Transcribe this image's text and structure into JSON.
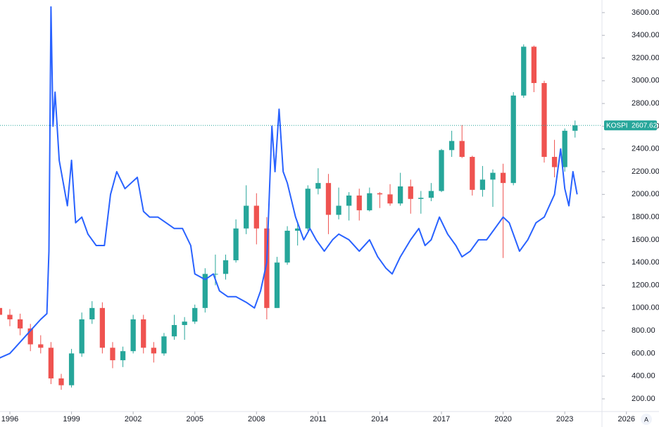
{
  "chart_data": {
    "type": "candlestick",
    "xlim": [
      1995.52,
      2024.81
    ],
    "xticks": [
      1996,
      1999,
      2002,
      2005,
      2008,
      2011,
      2014,
      2017,
      2020,
      2023,
      2026
    ],
    "ylim": [
      88.6,
      3711
    ],
    "yticks": [
      {
        "value": 200,
        "label": "200.00"
      },
      {
        "value": 400,
        "label": "400.00"
      },
      {
        "value": 600,
        "label": "600.00"
      },
      {
        "value": 800,
        "label": "800.00"
      },
      {
        "value": 1000,
        "label": "1000.00"
      },
      {
        "value": 1200,
        "label": "1200.00"
      },
      {
        "value": 1400,
        "label": "1400.00"
      },
      {
        "value": 1600,
        "label": "1600.00"
      },
      {
        "value": 1800,
        "label": "1800.00"
      },
      {
        "value": 2000,
        "label": "2000.00"
      },
      {
        "value": 2200,
        "label": "2200.00"
      },
      {
        "value": 2400,
        "label": "2400.00"
      },
      {
        "value": 2600,
        "label": "2600.00"
      },
      {
        "value": 2800,
        "label": "2800.00"
      },
      {
        "value": 3000,
        "label": "3000.00"
      },
      {
        "value": 3200,
        "label": "3200.00"
      },
      {
        "value": 3400,
        "label": "3400.00"
      },
      {
        "value": 3600,
        "label": "3600.00"
      }
    ],
    "up_color": "#26a69a",
    "down_color": "#ef5350",
    "auto_button": "A",
    "series": [
      {
        "name": "KOSPI",
        "type": "candlestick",
        "x": [
          1995.5,
          1996,
          1996.5,
          1997,
          1997.5,
          1998,
          1998.5,
          1999,
          1999.5,
          2000,
          2000.5,
          2001,
          2001.5,
          2002,
          2002.5,
          2003,
          2003.5,
          2004,
          2004.5,
          2005,
          2005.5,
          2006,
          2006.5,
          2007,
          2007.5,
          2008,
          2008.5,
          2009,
          2009.5,
          2010,
          2010.5,
          2011,
          2011.5,
          2012,
          2012.5,
          2013,
          2013.5,
          2014,
          2014.5,
          2015,
          2015.5,
          2016,
          2016.5,
          2017,
          2017.5,
          2018,
          2018.5,
          2019,
          2019.5,
          2020,
          2020.5,
          2021,
          2021.5,
          2022,
          2022.5,
          2023,
          2023.5
        ],
        "open": [
          1000,
          940,
          900,
          820,
          680,
          650,
          380,
          320,
          600,
          900,
          1000,
          650,
          540,
          620,
          900,
          650,
          600,
          750,
          850,
          880,
          1000,
          1300,
          1300,
          1420,
          1700,
          1900,
          1700,
          1000,
          1400,
          1680,
          1700,
          2050,
          2100,
          1820,
          1900,
          1990,
          1860,
          2010,
          2000,
          1920,
          2070,
          1960,
          1970,
          2030,
          2390,
          2470,
          2330,
          2040,
          2130,
          2190,
          2100,
          2870,
          3300,
          2980,
          2330,
          2240,
          2560
        ],
        "high": [
          1030,
          990,
          950,
          860,
          760,
          700,
          420,
          640,
          960,
          1060,
          1050,
          700,
          660,
          940,
          940,
          700,
          780,
          940,
          920,
          1030,
          1350,
          1470,
          1470,
          1780,
          2080,
          2010,
          1800,
          1450,
          1720,
          1760,
          2080,
          2230,
          2180,
          2060,
          2020,
          2050,
          2060,
          2020,
          2090,
          2190,
          2130,
          2030,
          2100,
          2400,
          2560,
          2610,
          2340,
          2250,
          2220,
          2270,
          2900,
          3320,
          3310,
          3000,
          2480,
          2580,
          2650
        ],
        "low": [
          880,
          840,
          760,
          620,
          600,
          330,
          280,
          300,
          570,
          860,
          600,
          470,
          480,
          600,
          600,
          520,
          580,
          720,
          720,
          860,
          960,
          1200,
          1250,
          1400,
          1650,
          1560,
          900,
          1000,
          1380,
          1550,
          1680,
          2000,
          1650,
          1780,
          1770,
          1770,
          1850,
          1880,
          1900,
          1900,
          1830,
          1830,
          1940,
          2020,
          2330,
          2320,
          1990,
          1980,
          1890,
          1440,
          2080,
          2850,
          2900,
          2280,
          2150,
          2200,
          2500
        ],
        "close": [
          940,
          900,
          820,
          680,
          650,
          380,
          320,
          600,
          900,
          1000,
          650,
          540,
          620,
          900,
          650,
          600,
          750,
          850,
          880,
          1000,
          1300,
          1300,
          1420,
          1700,
          1900,
          1700,
          1000,
          1400,
          1680,
          1700,
          2050,
          2100,
          1820,
          1900,
          1990,
          1860,
          2010,
          2000,
          1920,
          2070,
          1960,
          1970,
          2030,
          2390,
          2470,
          2330,
          2040,
          2130,
          2190,
          2100,
          2870,
          3300,
          2980,
          2330,
          2240,
          2560,
          2607.62
        ]
      },
      {
        "type": "line",
        "color": "#2962ff",
        "x": [
          1995.5,
          1996,
          1996.5,
          1997,
          1997.5,
          1997.8,
          1997.9,
          1998,
          1998.1,
          1998.2,
          1998.4,
          1998.6,
          1998.8,
          1999,
          1999.2,
          1999.5,
          1999.8,
          2000.2,
          2000.6,
          2000.9,
          2001.2,
          2001.6,
          2001.9,
          2002.2,
          2002.5,
          2002.8,
          2003.2,
          2003.6,
          2004,
          2004.4,
          2004.8,
          2005,
          2005.5,
          2005.9,
          2006.2,
          2006.6,
          2007,
          2007.5,
          2007.9,
          2008.2,
          2008.5,
          2008.75,
          2008.9,
          2009.1,
          2009.3,
          2009.5,
          2009.9,
          2010.3,
          2010.6,
          2010.9,
          2011.3,
          2011.7,
          2012,
          2012.5,
          2013,
          2013.5,
          2013.9,
          2014.3,
          2014.6,
          2015,
          2015.5,
          2015.9,
          2016.2,
          2016.5,
          2016.9,
          2017.3,
          2017.7,
          2018,
          2018.4,
          2018.8,
          2019.2,
          2019.6,
          2020,
          2020.3,
          2020.8,
          2021.2,
          2021.6,
          2022,
          2022.5,
          2022.8,
          2023,
          2023.2,
          2023.4,
          2023.6
        ],
        "values": [
          560,
          600,
          700,
          800,
          900,
          950,
          1500,
          3650,
          2600,
          2900,
          2300,
          2100,
          1900,
          2300,
          1750,
          1800,
          1650,
          1550,
          1550,
          2000,
          2200,
          2050,
          2100,
          2150,
          1850,
          1800,
          1800,
          1750,
          1700,
          1700,
          1550,
          1300,
          1250,
          1300,
          1150,
          1100,
          1100,
          1050,
          1000,
          1150,
          1400,
          2600,
          2200,
          2750,
          2200,
          2100,
          1800,
          1600,
          1700,
          1600,
          1500,
          1600,
          1650,
          1600,
          1500,
          1600,
          1450,
          1350,
          1300,
          1450,
          1600,
          1700,
          1550,
          1600,
          1800,
          1650,
          1550,
          1450,
          1500,
          1600,
          1600,
          1700,
          1800,
          1750,
          1500,
          1600,
          1750,
          1800,
          2000,
          2400,
          2050,
          1900,
          2200,
          2000
        ]
      }
    ]
  }
}
